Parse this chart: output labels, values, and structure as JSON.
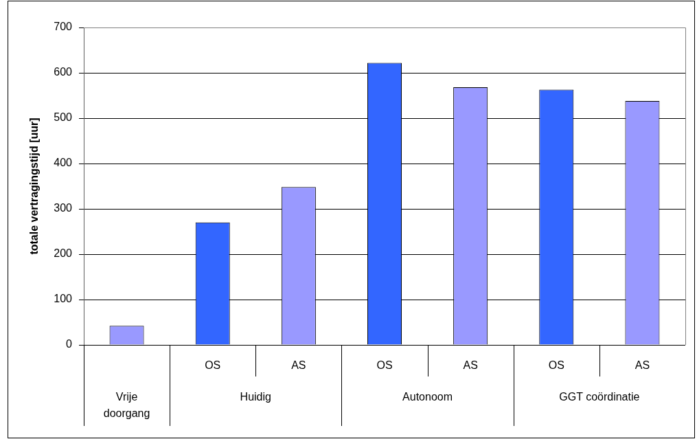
{
  "chart_data": {
    "type": "bar",
    "ylabel": "totale vertragingstijd [uur]",
    "categories": [
      null,
      "OS",
      "AS",
      "OS",
      "AS",
      "OS",
      "AS"
    ],
    "values": [
      42,
      270,
      348,
      622,
      568,
      563,
      538
    ],
    "colors": [
      "#9999ff",
      "#3366ff",
      "#9999ff",
      "#3366ff",
      "#9999ff",
      "#3366ff",
      "#9999ff"
    ],
    "ylim": [
      0,
      700
    ],
    "yticks": [
      0,
      100,
      200,
      300,
      400,
      500,
      600,
      700
    ],
    "grid": "y",
    "annotations": [
      "Vrije doorgang",
      "Huidig",
      "Autonoom",
      "GGT coördinatie"
    ]
  }
}
